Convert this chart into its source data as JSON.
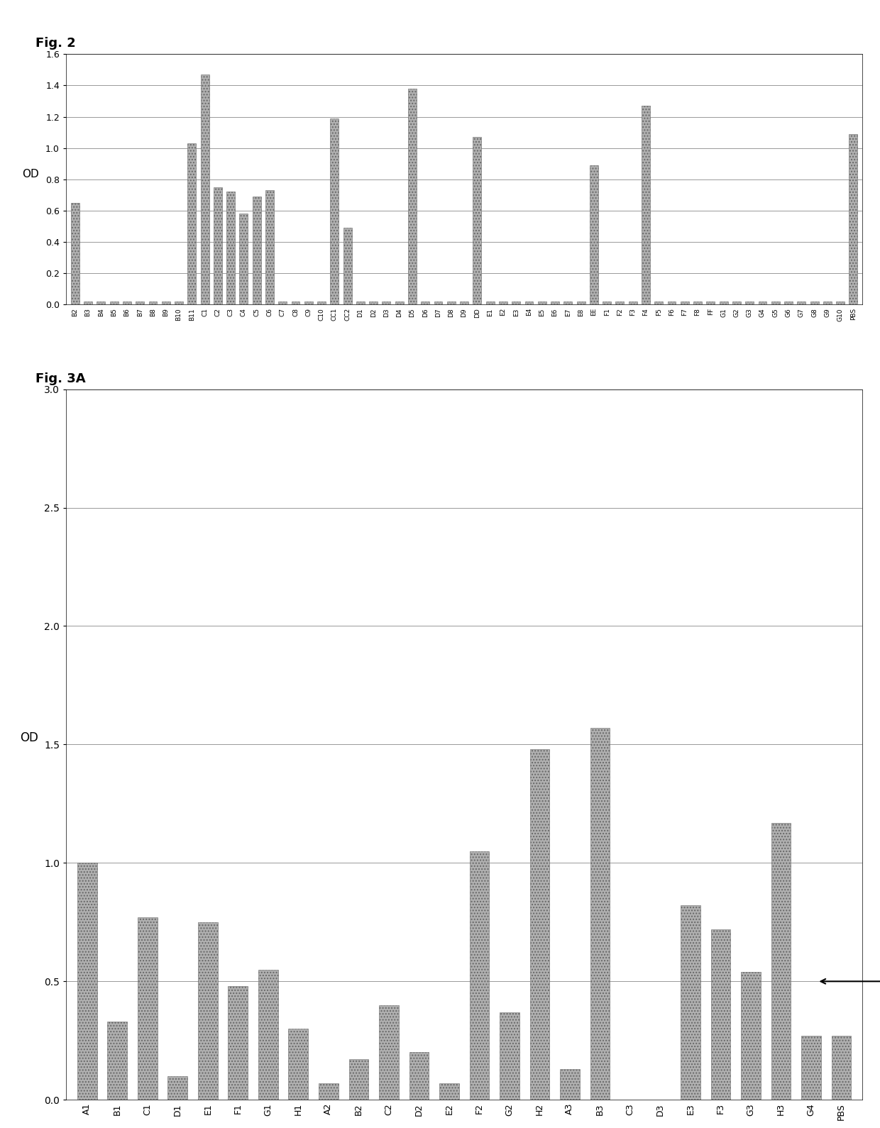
{
  "fig2_labels": [
    "B2",
    "B3",
    "B4",
    "B5",
    "B6",
    "B7",
    "B8",
    "B9",
    "B10",
    "B11",
    "C1",
    "C2",
    "C3",
    "C4",
    "C5",
    "C6",
    "C7",
    "C8",
    "C9",
    "C10",
    "CC1",
    "CC2",
    "D1",
    "D2",
    "D3",
    "D4",
    "D5",
    "D6",
    "D7",
    "D8",
    "D9",
    "DD",
    "E1",
    "E2",
    "E3",
    "E4",
    "E5",
    "E6",
    "E7",
    "E8",
    "EE",
    "F1",
    "F2",
    "F3",
    "F4",
    "F5",
    "F6",
    "F7",
    "F8",
    "FF",
    "G1",
    "G2",
    "G3",
    "G4",
    "G5",
    "G6",
    "G7",
    "G8",
    "G9",
    "G10",
    "PBS"
  ],
  "fig2_values": [
    0.65,
    0.02,
    0.02,
    0.02,
    0.02,
    0.02,
    0.02,
    0.02,
    0.02,
    1.03,
    1.47,
    0.75,
    0.72,
    0.58,
    0.69,
    0.73,
    0.02,
    0.02,
    0.02,
    0.02,
    1.19,
    0.49,
    0.02,
    0.02,
    0.02,
    0.02,
    1.38,
    0.02,
    0.02,
    0.02,
    0.02,
    1.07,
    0.02,
    0.02,
    0.02,
    0.02,
    0.02,
    0.02,
    0.02,
    0.02,
    0.89,
    0.02,
    0.02,
    0.02,
    1.27,
    0.02,
    0.02,
    0.02,
    0.02,
    0.02,
    0.02,
    0.02,
    0.02,
    0.02,
    0.02,
    0.02,
    0.02,
    0.02,
    0.02,
    0.02,
    1.09
  ],
  "fig3a_labels": [
    "A1",
    "B1",
    "C1",
    "D1",
    "E1",
    "F1",
    "G1",
    "H1",
    "A2",
    "B2",
    "C2",
    "D2",
    "E2",
    "F2",
    "G2",
    "H2",
    "A3",
    "B3",
    "C3",
    "D3",
    "E3",
    "F3",
    "G3",
    "H3",
    "G4",
    "PBS"
  ],
  "fig3a_values": [
    1.0,
    0.33,
    0.77,
    0.1,
    0.75,
    0.48,
    0.55,
    0.3,
    0.07,
    0.17,
    0.4,
    0.2,
    0.07,
    1.05,
    0.37,
    1.48,
    0.13,
    1.57,
    0.0,
    0.0,
    0.82,
    0.72,
    0.54,
    1.17,
    0.27,
    0.27
  ],
  "fig2_title": "Fig. 2",
  "fig3a_title": "Fig. 3A",
  "ylabel": "OD",
  "fig2_ylim": [
    0,
    1.6
  ],
  "fig3a_ylim": [
    0,
    3.0
  ],
  "bar_color": "#b0b0b0",
  "bg_color": "#ffffff",
  "grid_color": "#999999",
  "fig2_yticks": [
    0,
    0.2,
    0.4,
    0.6,
    0.8,
    1.0,
    1.2,
    1.4,
    1.6
  ],
  "fig3a_yticks": [
    0,
    0.5,
    1.0,
    1.5,
    2.0,
    2.5,
    3.0
  ]
}
